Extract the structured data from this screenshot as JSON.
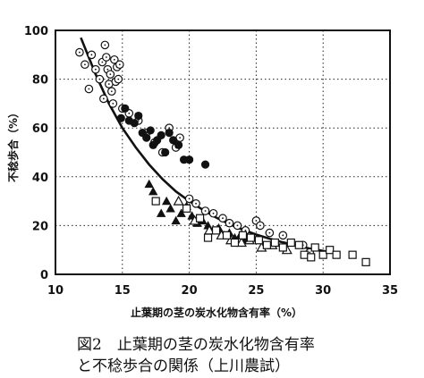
{
  "chart_data": {
    "type": "scatter",
    "title": "",
    "xlabel": "止葉期の茎の炭水化物含有率（%）",
    "ylabel": "不稔歩合（%）",
    "xlim": [
      10,
      35
    ],
    "ylim": [
      0,
      100
    ],
    "x_ticks": [
      10,
      15,
      20,
      25,
      30,
      35
    ],
    "y_ticks": [
      0,
      20,
      40,
      60,
      80,
      100
    ],
    "grid": "dotted",
    "legend": "none",
    "series": [
      {
        "marker": "open-circle",
        "points": [
          [
            11.8,
            91
          ],
          [
            12.2,
            86
          ],
          [
            12.5,
            76
          ],
          [
            12.7,
            90
          ],
          [
            13.0,
            84
          ],
          [
            13.3,
            80
          ],
          [
            13.5,
            87
          ],
          [
            13.7,
            94
          ],
          [
            13.8,
            89
          ],
          [
            13.9,
            84
          ],
          [
            14.0,
            78
          ],
          [
            14.1,
            82
          ],
          [
            14.2,
            75
          ],
          [
            14.4,
            88
          ],
          [
            14.5,
            79
          ],
          [
            14.6,
            85
          ],
          [
            14.7,
            80
          ],
          [
            14.8,
            86
          ],
          [
            13.6,
            72
          ],
          [
            14.3,
            70
          ],
          [
            15.0,
            68
          ],
          [
            15.5,
            66
          ],
          [
            16.2,
            63
          ],
          [
            16.8,
            58
          ],
          [
            17.4,
            54
          ],
          [
            18.0,
            50
          ],
          [
            18.5,
            60
          ],
          [
            19.0,
            52
          ],
          [
            19.3,
            56
          ],
          [
            20.0,
            31
          ],
          [
            20.5,
            29
          ],
          [
            21.2,
            26
          ],
          [
            21.8,
            25
          ],
          [
            22.5,
            23
          ],
          [
            23.0,
            21
          ],
          [
            23.6,
            20
          ],
          [
            24.2,
            18
          ],
          [
            25.0,
            22
          ],
          [
            25.3,
            20
          ],
          [
            26.0,
            17
          ],
          [
            27.0,
            16
          ],
          [
            28.5,
            12
          ],
          [
            29.0,
            9
          ]
        ]
      },
      {
        "marker": "filled-circle",
        "points": [
          [
            14.9,
            64
          ],
          [
            15.2,
            68
          ],
          [
            15.5,
            63
          ],
          [
            15.9,
            62
          ],
          [
            16.2,
            65
          ],
          [
            16.5,
            58
          ],
          [
            16.8,
            56
          ],
          [
            17.1,
            59
          ],
          [
            17.3,
            53
          ],
          [
            17.6,
            55
          ],
          [
            17.9,
            57
          ],
          [
            18.2,
            50
          ],
          [
            18.5,
            58
          ],
          [
            18.8,
            55
          ],
          [
            19.2,
            53
          ],
          [
            19.6,
            47
          ],
          [
            20.0,
            47
          ],
          [
            21.2,
            45
          ]
        ]
      },
      {
        "marker": "filled-triangle",
        "points": [
          [
            17.0,
            37
          ],
          [
            17.3,
            34
          ],
          [
            17.9,
            25
          ],
          [
            18.3,
            30
          ],
          [
            18.6,
            27
          ],
          [
            19.0,
            22
          ],
          [
            19.4,
            25
          ],
          [
            19.8,
            28
          ],
          [
            20.2,
            24
          ],
          [
            20.6,
            21
          ],
          [
            21.0,
            22
          ],
          [
            21.4,
            20
          ],
          [
            21.8,
            18
          ],
          [
            22.2,
            19
          ],
          [
            22.6,
            16
          ],
          [
            23.0,
            17
          ],
          [
            23.4,
            15
          ],
          [
            23.8,
            16
          ],
          [
            24.2,
            14
          ]
        ]
      },
      {
        "marker": "open-triangle",
        "points": [
          [
            19.2,
            30
          ],
          [
            20.4,
            22
          ],
          [
            21.5,
            18
          ],
          [
            22.4,
            16
          ],
          [
            23.1,
            14
          ],
          [
            23.9,
            13
          ],
          [
            24.5,
            14
          ],
          [
            25.4,
            11
          ],
          [
            26.2,
            12
          ],
          [
            27.3,
            10
          ]
        ]
      },
      {
        "marker": "open-square",
        "points": [
          [
            17.5,
            30
          ],
          [
            19.8,
            27
          ],
          [
            20.8,
            23
          ],
          [
            21.4,
            15
          ],
          [
            22.0,
            18
          ],
          [
            22.8,
            16
          ],
          [
            23.4,
            13
          ],
          [
            24.0,
            16
          ],
          [
            24.6,
            15
          ],
          [
            25.2,
            14
          ],
          [
            25.8,
            12
          ],
          [
            26.4,
            13
          ],
          [
            27.0,
            11
          ],
          [
            27.6,
            13
          ],
          [
            28.2,
            12
          ],
          [
            28.6,
            8
          ],
          [
            29.1,
            7
          ],
          [
            29.4,
            11
          ],
          [
            30.0,
            8
          ],
          [
            30.5,
            10
          ],
          [
            31.0,
            8
          ],
          [
            32.2,
            8
          ],
          [
            33.2,
            5
          ]
        ]
      }
    ],
    "trend_line": {
      "style": "solid",
      "points": [
        [
          11.9,
          97
        ],
        [
          13.0,
          82
        ],
        [
          14.0,
          70
        ],
        [
          15.0,
          60
        ],
        [
          16.0,
          52
        ],
        [
          17.0,
          45
        ],
        [
          18.0,
          39
        ],
        [
          19.0,
          34
        ],
        [
          20.0,
          30
        ],
        [
          21.0,
          26.5
        ],
        [
          22.0,
          23.3
        ],
        [
          23.0,
          20.6
        ],
        [
          24.0,
          18.3
        ],
        [
          25.0,
          16.3
        ],
        [
          26.0,
          14.6
        ],
        [
          27.0,
          13.1
        ],
        [
          28.0,
          11.8
        ],
        [
          29.0,
          10.6
        ],
        [
          30.0,
          9.6
        ],
        [
          31.0,
          8.7
        ]
      ]
    }
  },
  "caption": {
    "line1": "図2　止葉期の茎の炭水化物含有率",
    "line2": "と不稔歩合の関係（上川農試）"
  }
}
